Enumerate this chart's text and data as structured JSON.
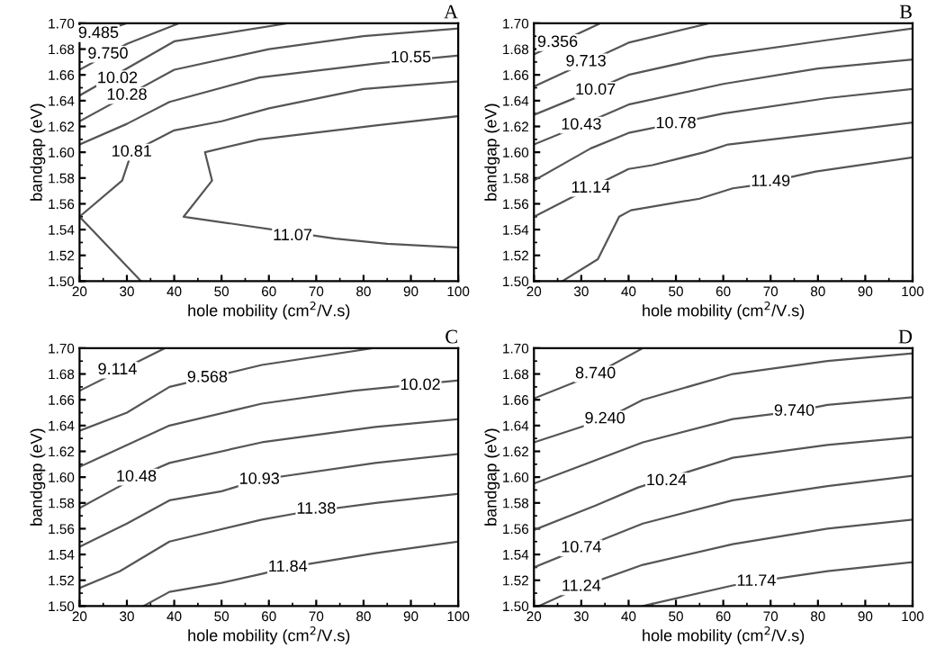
{
  "chart_data": [
    {
      "type": "line",
      "title": "A",
      "xlabel": "hole mobility (cm$^{2}$/V.s)",
      "ylabel": "bandgap (eV)",
      "xlim": [
        20,
        100
      ],
      "ylim": [
        1.5,
        1.7
      ],
      "xticks": [
        20,
        30,
        40,
        50,
        60,
        70,
        80,
        90,
        100
      ],
      "yticks": [
        {
          "value": 1.5,
          "label": "1.50"
        },
        1.52,
        1.54,
        1.56,
        1.58,
        {
          "value": 1.6,
          "label": "1.60"
        },
        1.62,
        1.64,
        1.66,
        1.68,
        {
          "value": 1.7,
          "label": "1.70"
        }
      ],
      "grid": false,
      "legend": false,
      "marker": "none",
      "line_style": "solid",
      "series": [
        {
          "color": "#555555",
          "x": [
            20,
            30
          ],
          "values": [
            1.688,
            1.7
          ]
        },
        {
          "color": "#555555",
          "x": [
            20,
            30,
            41
          ],
          "values": [
            1.664,
            1.684,
            1.7
          ]
        },
        {
          "color": "#555555",
          "x": [
            20,
            40,
            64
          ],
          "values": [
            1.644,
            1.686,
            1.7
          ]
        },
        {
          "color": "#555555",
          "x": [
            20,
            30,
            40,
            60,
            80,
            100
          ],
          "values": [
            1.624,
            1.644,
            1.664,
            1.68,
            1.69,
            1.696
          ]
        },
        {
          "color": "#555555",
          "x": [
            20,
            30,
            39,
            58,
            83,
            100
          ],
          "values": [
            1.606,
            1.622,
            1.639,
            1.658,
            1.669,
            1.675
          ]
        },
        {
          "color": "#555555",
          "x": [
            20,
            29,
            31,
            40,
            50,
            60,
            80,
            100
          ],
          "values": [
            1.55,
            1.578,
            1.6,
            1.617,
            1.624,
            1.634,
            1.649,
            1.655
          ]
        },
        {
          "color": "#555555",
          "x": [
            100,
            83,
            58,
            46.5,
            48,
            42,
            74,
            85,
            100
          ],
          "values": [
            1.628,
            1.621,
            1.61,
            1.6,
            1.578,
            1.55,
            1.533,
            1.529,
            1.526
          ]
        },
        {
          "color": "#555555",
          "x": [
            20,
            33
          ],
          "values": [
            1.55,
            1.5
          ]
        }
      ],
      "annotations": [
        {
          "text": "9.485",
          "x": 24,
          "y": 1.692
        },
        {
          "text": "9.750",
          "x": 26,
          "y": 1.676
        },
        {
          "text": "10.02",
          "x": 28,
          "y": 1.657
        },
        {
          "text": "10.28",
          "x": 30,
          "y": 1.644
        },
        {
          "text": "10.81",
          "x": 31,
          "y": 1.6
        },
        {
          "text": "10.55",
          "x": 90,
          "y": 1.673
        },
        {
          "text": "11.07",
          "x": 65,
          "y": 1.535
        }
      ]
    },
    {
      "type": "line",
      "title": "B",
      "xlabel": "hole mobility (cm$^{2}$/V.s)",
      "ylabel": "bandgap (eV)",
      "xlim": [
        20,
        100
      ],
      "ylim": [
        1.5,
        1.7
      ],
      "xticks": [
        20,
        30,
        40,
        50,
        60,
        70,
        80,
        90,
        100
      ],
      "yticks": [
        {
          "value": 1.5,
          "label": "1.50"
        },
        1.52,
        1.54,
        1.56,
        1.58,
        {
          "value": 1.6,
          "label": "1.60"
        },
        1.62,
        1.64,
        1.66,
        1.68,
        {
          "value": 1.7,
          "label": "1.70"
        }
      ],
      "grid": false,
      "legend": false,
      "marker": "none",
      "line_style": "solid",
      "series": [
        {
          "color": "#555555",
          "x": [
            20,
            34
          ],
          "values": [
            1.676,
            1.7
          ]
        },
        {
          "color": "#555555",
          "x": [
            20,
            40,
            57
          ],
          "values": [
            1.651,
            1.685,
            1.7
          ]
        },
        {
          "color": "#555555",
          "x": [
            20,
            30,
            40,
            57,
            82,
            100
          ],
          "values": [
            1.629,
            1.644,
            1.66,
            1.674,
            1.687,
            1.696
          ]
        },
        {
          "color": "#555555",
          "x": [
            20,
            30,
            40,
            60,
            80,
            100
          ],
          "values": [
            1.606,
            1.621,
            1.637,
            1.653,
            1.665,
            1.672
          ]
        },
        {
          "color": "#555555",
          "x": [
            20,
            32,
            40,
            60,
            82,
            100
          ],
          "values": [
            1.578,
            1.603,
            1.615,
            1.63,
            1.642,
            1.649
          ]
        },
        {
          "color": "#555555",
          "x": [
            20,
            29,
            40,
            45,
            56,
            61,
            82,
            100
          ],
          "values": [
            1.55,
            1.567,
            1.587,
            1.59,
            1.6,
            1.606,
            1.615,
            1.623
          ]
        },
        {
          "color": "#555555",
          "x": [
            26,
            33.5,
            38,
            40.5,
            55,
            62,
            66,
            79.5,
            100
          ],
          "values": [
            1.5,
            1.517,
            1.55,
            1.555,
            1.564,
            1.572,
            1.574,
            1.585,
            1.596
          ]
        }
      ],
      "annotations": [
        {
          "text": "9.356",
          "x": 25,
          "y": 1.685
        },
        {
          "text": "9.713",
          "x": 31,
          "y": 1.67
        },
        {
          "text": "10.07",
          "x": 33,
          "y": 1.648
        },
        {
          "text": "10.43",
          "x": 30,
          "y": 1.621
        },
        {
          "text": "10.78",
          "x": 50,
          "y": 1.622
        },
        {
          "text": "11.14",
          "x": 32,
          "y": 1.572
        },
        {
          "text": "11.49",
          "x": 70,
          "y": 1.577
        }
      ]
    },
    {
      "type": "line",
      "title": "C",
      "xlabel": "hole mobility (cm$^{2}$/V.s)",
      "ylabel": "bandgap (eV)",
      "xlim": [
        20,
        100
      ],
      "ylim": [
        1.5,
        1.7
      ],
      "xticks": [
        20,
        30,
        40,
        50,
        60,
        70,
        80,
        90,
        100
      ],
      "yticks": [
        {
          "value": 1.5,
          "label": "1.50"
        },
        1.52,
        1.54,
        1.56,
        1.58,
        {
          "value": 1.6,
          "label": "1.60"
        },
        1.62,
        1.64,
        1.66,
        1.68,
        {
          "value": 1.7,
          "label": "1.70"
        }
      ],
      "grid": false,
      "legend": false,
      "marker": "none",
      "line_style": "solid",
      "series": [
        {
          "color": "#555555",
          "x": [
            20,
            38
          ],
          "values": [
            1.667,
            1.7
          ]
        },
        {
          "color": "#555555",
          "x": [
            20,
            30,
            39,
            58.5,
            82
          ],
          "values": [
            1.636,
            1.65,
            1.67,
            1.687,
            1.7
          ]
        },
        {
          "color": "#555555",
          "x": [
            20,
            39,
            58.5,
            78,
            100
          ],
          "values": [
            1.608,
            1.64,
            1.657,
            1.667,
            1.675
          ]
        },
        {
          "color": "#555555",
          "x": [
            20,
            32,
            39,
            58.5,
            82.5,
            100
          ],
          "values": [
            1.576,
            1.6,
            1.611,
            1.627,
            1.639,
            1.645
          ]
        },
        {
          "color": "#555555",
          "x": [
            20,
            30,
            39,
            50,
            58,
            82.5,
            100
          ],
          "values": [
            1.546,
            1.564,
            1.582,
            1.589,
            1.598,
            1.611,
            1.618
          ]
        },
        {
          "color": "#555555",
          "x": [
            20,
            28.5,
            39,
            58.5,
            66,
            82.5,
            100
          ],
          "values": [
            1.514,
            1.527,
            1.55,
            1.567,
            1.572,
            1.58,
            1.587
          ]
        },
        {
          "color": "#555555",
          "x": [
            33.5,
            39,
            50,
            58.5,
            64,
            82.5,
            100
          ],
          "values": [
            1.5,
            1.511,
            1.518,
            1.525,
            1.53,
            1.541,
            1.55
          ]
        }
      ],
      "annotations": [
        {
          "text": "9.114",
          "x": 28,
          "y": 1.683
        },
        {
          "text": "9.568",
          "x": 47,
          "y": 1.677
        },
        {
          "text": "10.02",
          "x": 92,
          "y": 1.671
        },
        {
          "text": "10.48",
          "x": 32,
          "y": 1.6
        },
        {
          "text": "10.93",
          "x": 58,
          "y": 1.598
        },
        {
          "text": "11.38",
          "x": 70,
          "y": 1.575
        },
        {
          "text": "11.84",
          "x": 64,
          "y": 1.53
        }
      ]
    },
    {
      "type": "line",
      "title": "D",
      "xlabel": "hole mobility (cm$^{2}$/V.s)",
      "ylabel": "bandgap (eV)",
      "xlim": [
        20,
        100
      ],
      "ylim": [
        1.5,
        1.7
      ],
      "xticks": [
        20,
        30,
        40,
        50,
        60,
        70,
        80,
        90,
        100
      ],
      "yticks": [
        {
          "value": 1.5,
          "label": "1.50"
        },
        1.52,
        1.54,
        1.56,
        1.58,
        {
          "value": 1.6,
          "label": "1.60"
        },
        1.62,
        1.64,
        1.66,
        1.68,
        {
          "value": 1.7,
          "label": "1.70"
        }
      ],
      "grid": false,
      "legend": false,
      "marker": "none",
      "line_style": "solid",
      "series": [
        {
          "color": "#555555",
          "x": [
            20,
            33,
            43
          ],
          "values": [
            1.661,
            1.68,
            1.7
          ]
        },
        {
          "color": "#555555",
          "x": [
            20,
            35,
            43,
            62,
            82,
            100
          ],
          "values": [
            1.627,
            1.645,
            1.66,
            1.68,
            1.69,
            1.696
          ]
        },
        {
          "color": "#555555",
          "x": [
            20,
            43,
            62,
            75,
            82,
            100
          ],
          "values": [
            1.595,
            1.627,
            1.645,
            1.651,
            1.656,
            1.662
          ]
        },
        {
          "color": "#555555",
          "x": [
            20,
            33,
            42,
            62,
            82,
            100
          ],
          "values": [
            1.559,
            1.578,
            1.592,
            1.615,
            1.625,
            1.631
          ]
        },
        {
          "color": "#555555",
          "x": [
            20,
            30,
            43,
            62,
            82,
            100
          ],
          "values": [
            1.53,
            1.545,
            1.564,
            1.582,
            1.593,
            1.601
          ]
        },
        {
          "color": "#555555",
          "x": [
            21,
            30,
            43,
            62,
            82,
            100
          ],
          "values": [
            1.5,
            1.515,
            1.532,
            1.548,
            1.56,
            1.567
          ]
        },
        {
          "color": "#555555",
          "x": [
            43,
            62,
            67,
            82,
            100
          ],
          "values": [
            1.5,
            1.516,
            1.519,
            1.527,
            1.534
          ]
        }
      ],
      "annotations": [
        {
          "text": "8.740",
          "x": 33,
          "y": 1.68
        },
        {
          "text": "9.240",
          "x": 35,
          "y": 1.645
        },
        {
          "text": "9.740",
          "x": 75,
          "y": 1.651
        },
        {
          "text": "10.24",
          "x": 48,
          "y": 1.597
        },
        {
          "text": "10.74",
          "x": 30,
          "y": 1.545
        },
        {
          "text": "11.24",
          "x": 30,
          "y": 1.515
        },
        {
          "text": "11.74",
          "x": 67,
          "y": 1.519
        }
      ]
    }
  ]
}
